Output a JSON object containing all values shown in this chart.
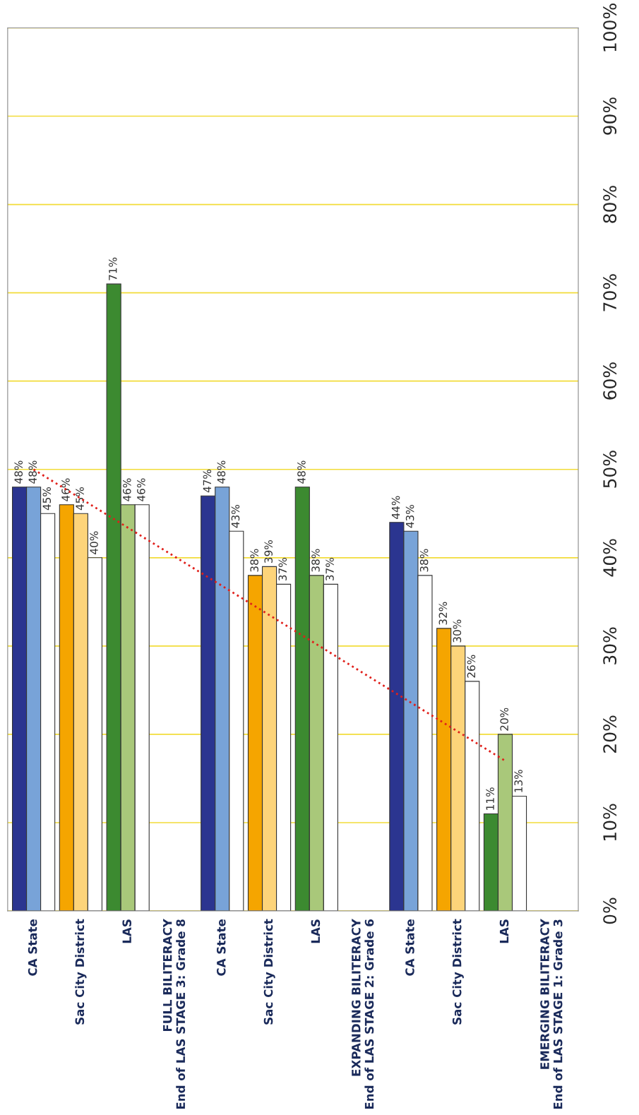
{
  "chart_data": {
    "type": "bar",
    "categories": [
      "CA State",
      "Sac City District",
      "LAS",
      "FULL BILITERACY\nEnd of LAS STAGE 3: Grade 8",
      "CA State",
      "Sac City District",
      "LAS",
      "EXPANDING BILITERACY\nEnd of LAS STAGE 2: Grade 6",
      "CA State",
      "Sac City District",
      "LAS",
      "EMERGING BILITERACY\nEnd of LAS STAGE 1: Grade 3"
    ],
    "series": [
      {
        "colors": [
          "#2b3590",
          "#f5a500",
          "#3c8a30",
          null,
          "#2b3590",
          "#f5a500",
          "#3c8a30",
          null,
          "#2b3590",
          "#f5a500",
          "#3c8a30",
          null
        ],
        "values": [
          48,
          46,
          71,
          null,
          47,
          38,
          48,
          null,
          44,
          32,
          11,
          null
        ],
        "value_labels": [
          "48%",
          "46%",
          "71%",
          null,
          "47%",
          "38%",
          "48%",
          null,
          "44%",
          "32%",
          "11%",
          null
        ]
      },
      {
        "colors": [
          "#78a3d8",
          "#fdd47a",
          "#a9c87a",
          null,
          "#78a3d8",
          "#fdd47a",
          "#a9c87a",
          null,
          "#78a3d8",
          "#fdd47a",
          "#a9c87a",
          null
        ],
        "values": [
          48,
          45,
          46,
          null,
          48,
          39,
          38,
          null,
          43,
          30,
          20,
          null
        ],
        "value_labels": [
          "48%",
          "45%",
          "46%",
          null,
          "48%",
          "39%",
          "38%",
          null,
          "43%",
          "30%",
          "20%",
          null
        ]
      },
      {
        "colors": [
          "#ffffff",
          "#ffffff",
          "#ffffff",
          null,
          "#ffffff",
          "#ffffff",
          "#ffffff",
          null,
          "#ffffff",
          "#ffffff",
          "#ffffff",
          null
        ],
        "values": [
          45,
          40,
          46,
          null,
          43,
          37,
          37,
          null,
          38,
          26,
          13,
          null
        ],
        "value_labels": [
          "45%",
          "40%",
          "46%",
          null,
          "43%",
          "37%",
          "37%",
          null,
          "38%",
          "26%",
          "13%",
          null
        ]
      },
      {
        "type": "line",
        "values": [
          50,
          null,
          null,
          null,
          null,
          null,
          null,
          null,
          null,
          null,
          17,
          null
        ],
        "color": "#e0201b",
        "line_style": "dotted"
      }
    ],
    "ylim": [
      0,
      100
    ],
    "yticks": [
      {
        "value": 0,
        "label": "0%"
      },
      {
        "value": 10,
        "label": "10%"
      },
      {
        "value": 20,
        "label": "20%"
      },
      {
        "value": 30,
        "label": "30%"
      },
      {
        "value": 40,
        "label": "40%"
      },
      {
        "value": 50,
        "label": "50%"
      },
      {
        "value": 60,
        "label": "60%"
      },
      {
        "value": 70,
        "label": "70%"
      },
      {
        "value": 80,
        "label": "80%"
      },
      {
        "value": 90,
        "label": "90%"
      },
      {
        "value": 100,
        "label": "100%"
      }
    ],
    "grid": "y"
  }
}
